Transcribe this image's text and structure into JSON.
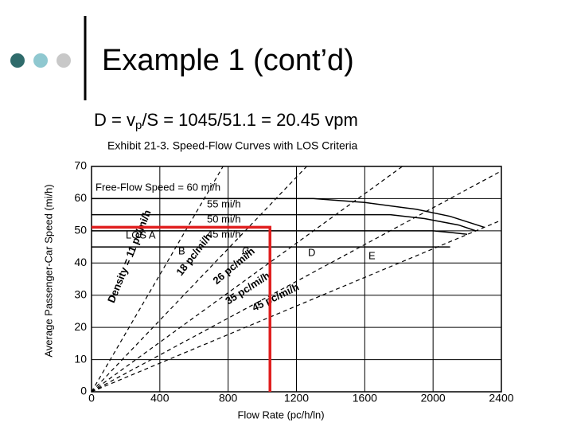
{
  "slide": {
    "title": "Example 1 (cont’d)",
    "equation": {
      "lhs": "D = v",
      "sub": "p",
      "rhs": "/S = 1045/51.1 = 20.45 vpm"
    }
  },
  "chart_data": {
    "type": "line",
    "title": "Exhibit 21-3. Speed-Flow Curves with LOS Criteria",
    "x_label": "Flow Rate (pc/h/ln)",
    "y_label": "Average Passenger-Car Speed (mi/h)",
    "xlim": [
      0,
      2400
    ],
    "ylim": [
      0,
      70
    ],
    "xticks": [
      0,
      400,
      800,
      1200,
      1600,
      2000,
      2400
    ],
    "yticks": [
      0,
      10,
      20,
      30,
      40,
      50,
      60,
      70
    ],
    "grid": true,
    "series": [
      {
        "name": "Free-Flow Speed = 60 mi/h",
        "color": "#000000",
        "dashed": false,
        "x": [
          0,
          1300,
          1600,
          1900,
          2100,
          2300
        ],
        "values": [
          60,
          60,
          58.8,
          56.7,
          54.5,
          51.1
        ]
      },
      {
        "name": "55 mi/h",
        "color": "#000000",
        "dashed": false,
        "x": [
          0,
          1750,
          1950,
          2150,
          2250
        ],
        "values": [
          55,
          55,
          53.8,
          51.8,
          50
        ]
      },
      {
        "name": "50 mi/h",
        "color": "#000000",
        "dashed": false,
        "x": [
          0,
          2000,
          2100,
          2200
        ],
        "values": [
          50,
          50,
          49.5,
          48.9
        ]
      },
      {
        "name": "45 mi/h",
        "color": "#000000",
        "dashed": false,
        "x": [
          0,
          2100
        ],
        "values": [
          45,
          45
        ]
      },
      {
        "name": "Density = 11 pc/mi/h",
        "color": "#000000",
        "dashed": true,
        "x": [
          0,
          770
        ],
        "values": [
          0,
          70
        ]
      },
      {
        "name": "18 pc/mi/h",
        "color": "#000000",
        "dashed": true,
        "x": [
          0,
          1260
        ],
        "values": [
          0,
          70
        ]
      },
      {
        "name": "26 pc/mi/h",
        "color": "#000000",
        "dashed": true,
        "x": [
          0,
          1820
        ],
        "values": [
          0,
          70
        ]
      },
      {
        "name": "35 pc/mi/h",
        "color": "#000000",
        "dashed": true,
        "x": [
          0,
          2400
        ],
        "values": [
          0,
          68.6
        ]
      },
      {
        "name": "45 pc/mi/h",
        "color": "#000000",
        "dashed": true,
        "x": [
          0,
          2400
        ],
        "values": [
          0,
          53.3
        ]
      },
      {
        "color": "#e01e1e",
        "dashed": false,
        "x": [
          0,
          1045,
          1045
        ],
        "values": [
          51.1,
          51.1,
          0
        ]
      }
    ],
    "annotations": [
      "LOS A",
      "B",
      "C",
      "D",
      "E"
    ]
  }
}
